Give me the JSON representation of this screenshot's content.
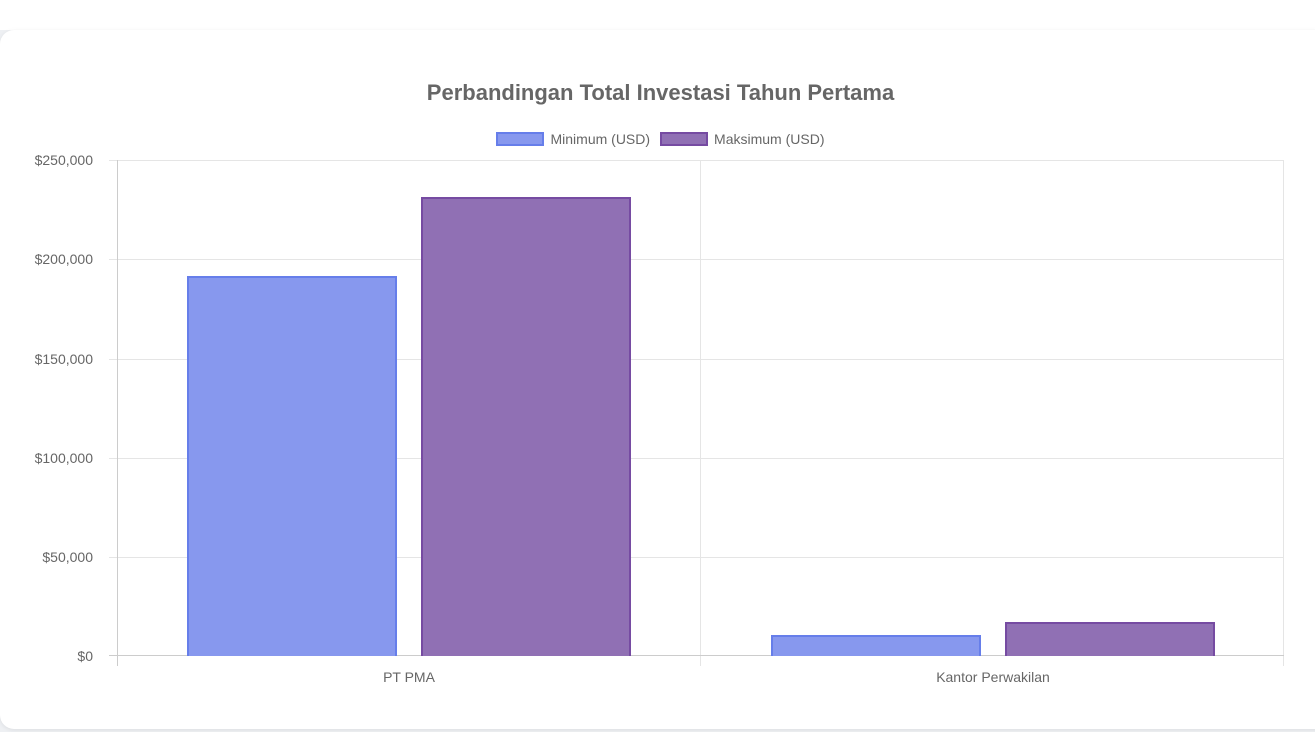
{
  "chart_data": {
    "type": "bar",
    "title": "Perbandingan Total Investasi Tahun Pertama",
    "categories": [
      "PT PMA",
      "Kantor Perwakilan"
    ],
    "series": [
      {
        "name": "Minimum (USD)",
        "values": [
          191500,
          10500
        ],
        "fill": "#8798ee",
        "border": "#667eea"
      },
      {
        "name": "Maksimum (USD)",
        "values": [
          231500,
          17000
        ],
        "fill": "#9070b4",
        "border": "#764ba2"
      }
    ],
    "xlabel": "",
    "ylabel": "",
    "ylim": [
      0,
      250000
    ],
    "yticks": [
      "$250,000",
      "$200,000",
      "$150,000",
      "$100,000",
      "$50,000",
      "$0"
    ],
    "grid": true,
    "legend_position": "top"
  }
}
